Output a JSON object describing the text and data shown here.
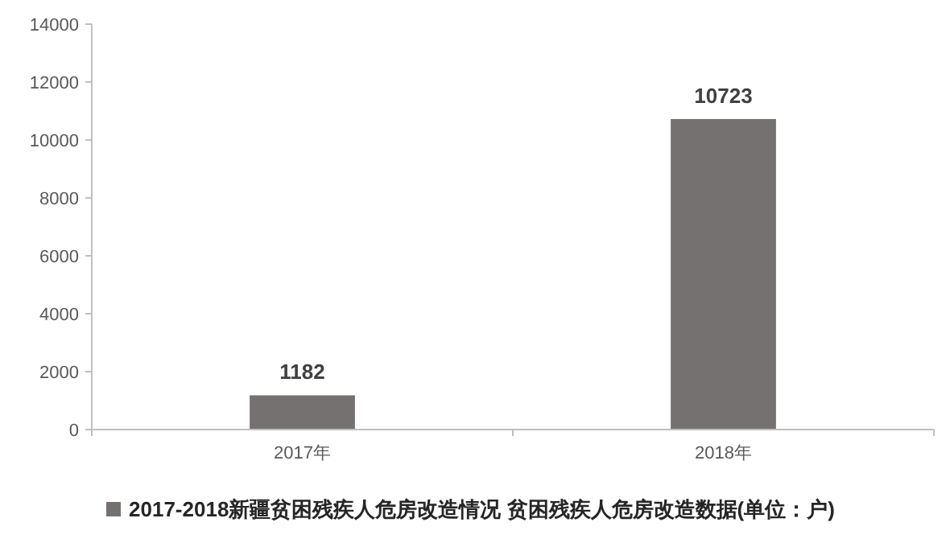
{
  "chart_data": {
    "type": "bar",
    "categories": [
      "2017年",
      "2018年"
    ],
    "series": [
      {
        "name": "2017-2018新疆贫困残疾人危房改造情况 贫困残疾人危房改造数据(单位：户)",
        "color": "#767171",
        "values": [
          1182,
          10723
        ]
      }
    ],
    "ylim": [
      0,
      14000
    ],
    "yticks": [
      0,
      2000,
      4000,
      6000,
      8000,
      10000,
      12000,
      14000
    ],
    "data_labels": true,
    "legend": "bottom",
    "grid": false
  }
}
